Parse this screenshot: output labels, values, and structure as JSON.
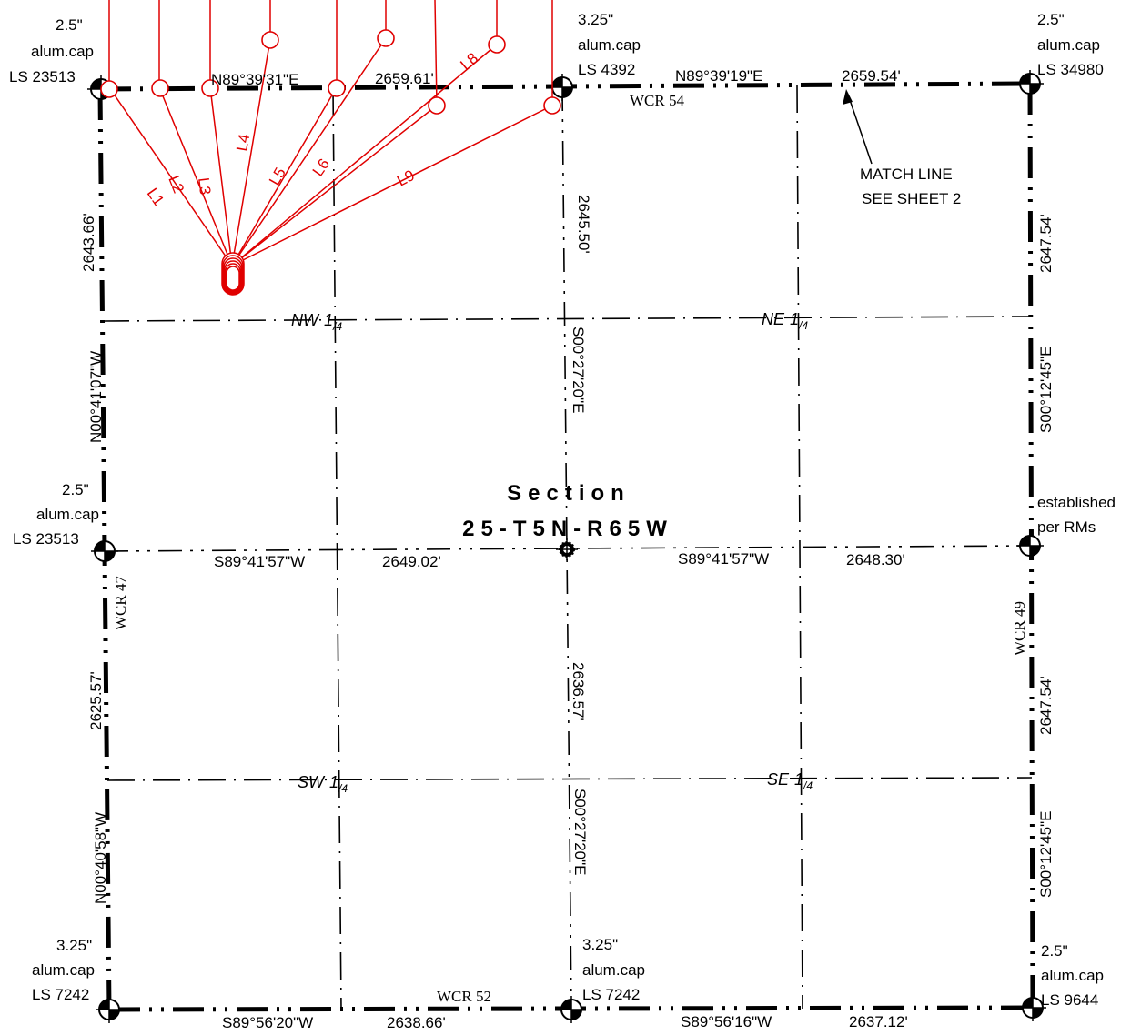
{
  "section": {
    "title": "Section",
    "subtitle": "25-T5N-R65W"
  },
  "quarters": {
    "nw": "NW",
    "ne": "NE",
    "sw": "SW",
    "se": "SE",
    "fraction": "1/4"
  },
  "roads": {
    "north": "WCR 54",
    "south": "WCR 52",
    "west": "WCR 47",
    "east": "WCR 49"
  },
  "match_line": {
    "line1": "MATCH LINE",
    "line2": "SEE SHEET 2"
  },
  "monuments": {
    "nw_corner": [
      "2.5\"",
      "alum.cap",
      "LS 23513"
    ],
    "n_quarter": [
      "3.25\"",
      "alum.cap",
      "LS 4392"
    ],
    "ne_corner": [
      "2.5\"",
      "alum.cap",
      "LS 34980"
    ],
    "w_quarter": [
      "2.5\"",
      "alum.cap",
      "LS 23513"
    ],
    "e_quarter": [
      "established",
      "per RMs"
    ],
    "sw_corner": [
      "3.25\"",
      "alum.cap",
      "LS 7242"
    ],
    "s_quarter": [
      "3.25\"",
      "alum.cap",
      "LS 7242"
    ],
    "se_corner": [
      "2.5\"",
      "alum.cap",
      "LS 9644"
    ]
  },
  "bearings": {
    "north_west_half": {
      "bearing": "N89°39'31\"E",
      "distance": "2659.61'"
    },
    "north_east_half": {
      "bearing": "N89°39'19\"E",
      "distance": "2659.54'"
    },
    "center_west_half": {
      "bearing": "S89°41'57\"W",
      "distance": "2649.02'"
    },
    "center_east_half": {
      "bearing": "S89°41'57\"W",
      "distance": "2648.30'"
    },
    "south_west_half": {
      "bearing": "S89°56'20\"W",
      "distance": "2638.66'"
    },
    "south_east_half": {
      "bearing": "S89°56'16\"W",
      "distance": "2637.12'"
    },
    "west_north_half": {
      "bearing": "N00°41'07\"W",
      "distance": "2643.66'"
    },
    "west_south_half": {
      "bearing": "N00°40'58\"W",
      "distance": "2625.57'"
    },
    "middle_north_half": {
      "bearing": "S00°27'20\"E",
      "distance": "2645.50'"
    },
    "middle_south_half": {
      "bearing": "S00°27'20\"E",
      "distance": "2636.57'"
    },
    "east_north_half": {
      "bearing": "S00°12'45\"E",
      "distance": "2647.54'"
    },
    "east_south_half": {
      "bearing": "S00°12'45\"E",
      "distance": "2647.54'"
    }
  },
  "laterals": [
    "L1",
    "L2",
    "L3",
    "L4",
    "L5",
    "L6",
    "L8",
    "L9"
  ],
  "colors": {
    "lines": "#000000",
    "wellbores": "#e00000"
  }
}
